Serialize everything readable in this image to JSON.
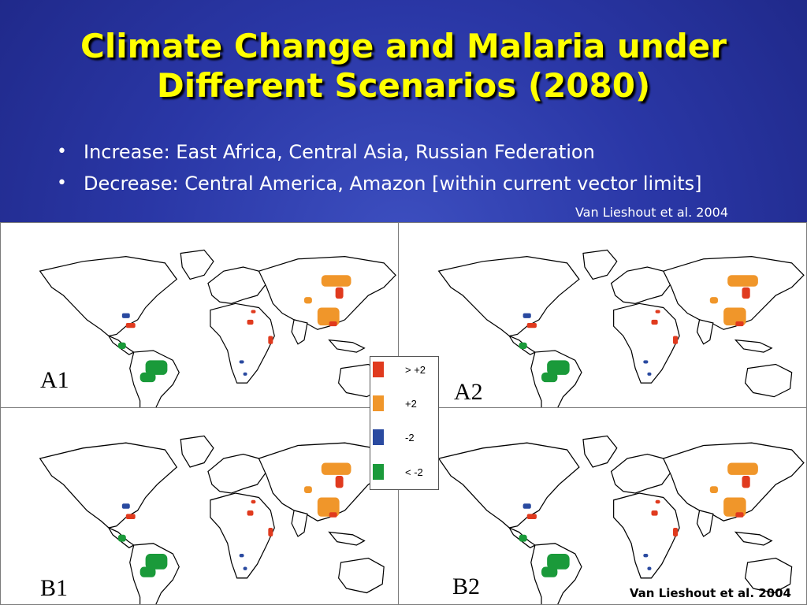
{
  "slide": {
    "title_line1": "Climate Change and Malaria under",
    "title_line2": "Different Scenarios (2080)",
    "bullets": [
      "Increase: East Africa, Central Asia, Russian Federation",
      "Decrease: Central America, Amazon [within current vector limits]"
    ],
    "citation_top": "Van Lieshout et al. 2004",
    "citation_bottom": "Van Lieshout et al. 2004"
  },
  "maps": [
    {
      "label": "A1"
    },
    {
      "label": "A2"
    },
    {
      "label": "B1"
    },
    {
      "label": "B2"
    }
  ],
  "legend": [
    {
      "label": "> +2",
      "color": "#e03a1e"
    },
    {
      "label": "+2",
      "color": "#f0962a"
    },
    {
      "label": "-2",
      "color": "#2a4aa0"
    },
    {
      "label": "< -2",
      "color": "#1a9a3a"
    }
  ],
  "colors": {
    "title": "#ffff00",
    "background": "#2a37a6",
    "land_fill": "#ffffff",
    "land_outline": "#000000"
  }
}
